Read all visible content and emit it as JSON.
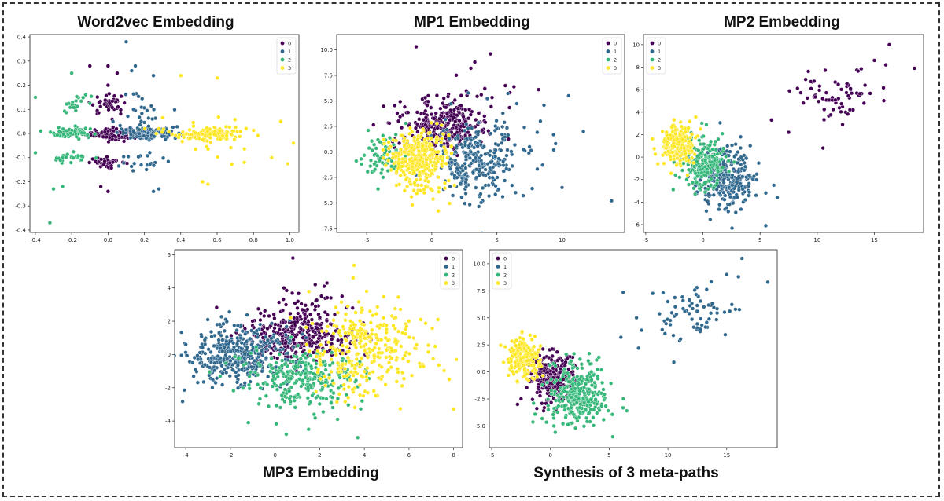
{
  "cluster_colors": [
    "#440154",
    "#31688e",
    "#35b779",
    "#fde725"
  ],
  "chart_data": [
    {
      "type": "scatter",
      "title": "Word2vec Embedding",
      "xlim": [
        -0.43,
        1.05
      ],
      "ylim": [
        -0.41,
        0.41
      ],
      "xticks": [
        -0.4,
        -0.2,
        0.0,
        0.2,
        0.4,
        0.6,
        0.8,
        1.0
      ],
      "xtick_labels": [
        "-0.4",
        "-0.2",
        "0.0",
        "0.2",
        "0.4",
        "0.6",
        "0.8",
        "1.0"
      ],
      "yticks": [
        -0.4,
        -0.3,
        -0.2,
        -0.1,
        0.0,
        0.1,
        0.2,
        0.3,
        0.4
      ],
      "ytick_labels": [
        "-0.4",
        "-0.3",
        "-0.2",
        "-0.1",
        "0.0",
        "0.1",
        "0.2",
        "0.3",
        "0.4"
      ],
      "legend": {
        "position": "top-right",
        "entries": [
          "0",
          "1",
          "2",
          "3"
        ]
      },
      "clusters": [
        {
          "label": "0",
          "blobs": [
            [
              0.0,
              0.0,
              0.06,
              0.012,
              120
            ],
            [
              0.0,
              0.12,
              0.05,
              0.02,
              40
            ],
            [
              0.0,
              -0.12,
              0.05,
              0.01,
              40
            ]
          ],
          "points": [
            [
              -0.1,
              0.28
            ],
            [
              0.0,
              0.28
            ],
            [
              0.05,
              0.25
            ],
            [
              -0.04,
              -0.22
            ],
            [
              0.0,
              -0.24
            ],
            [
              0.0,
              0.2
            ]
          ]
        },
        {
          "label": "1",
          "blobs": [
            [
              0.22,
              0.0,
              0.08,
              0.012,
              120
            ],
            [
              0.2,
              0.1,
              0.06,
              0.04,
              25
            ],
            [
              0.2,
              -0.12,
              0.07,
              0.02,
              20
            ]
          ],
          "points": [
            [
              0.1,
              0.38
            ],
            [
              0.15,
              0.28
            ],
            [
              0.25,
              -0.24
            ],
            [
              0.28,
              -0.23
            ],
            [
              0.13,
              0.26
            ],
            [
              0.25,
              0.24
            ]
          ]
        },
        {
          "label": "2",
          "blobs": [
            [
              -0.2,
              0.0,
              0.06,
              0.012,
              60
            ],
            [
              -0.2,
              -0.1,
              0.05,
              0.01,
              25
            ],
            [
              -0.2,
              0.12,
              0.04,
              0.03,
              20
            ]
          ],
          "points": [
            [
              -0.4,
              0.15
            ],
            [
              -0.32,
              -0.37
            ],
            [
              -0.37,
              0.01
            ],
            [
              -0.4,
              -0.08
            ],
            [
              -0.25,
              -0.22
            ],
            [
              -0.2,
              0.25
            ],
            [
              -0.3,
              -0.23
            ]
          ]
        },
        {
          "label": "3",
          "blobs": [
            [
              0.55,
              0.0,
              0.12,
              0.015,
              90
            ],
            [
              0.55,
              0.0,
              0.15,
              0.06,
              25
            ]
          ],
          "points": [
            [
              0.4,
              0.24
            ],
            [
              0.52,
              -0.2
            ],
            [
              0.55,
              -0.21
            ],
            [
              0.6,
              0.23
            ],
            [
              0.75,
              -0.12
            ],
            [
              0.95,
              0.05
            ],
            [
              1.02,
              -0.04
            ],
            [
              0.9,
              -0.1
            ]
          ]
        }
      ]
    },
    {
      "type": "scatter",
      "title": "MP1 Embedding",
      "xlim": [
        -7.3,
        14.8
      ],
      "ylim": [
        -7.9,
        11.5
      ],
      "xticks": [
        -5,
        0,
        5,
        10
      ],
      "xtick_labels": [
        "-5",
        "0",
        "5",
        "10"
      ],
      "yticks": [
        -7.5,
        -5.0,
        -2.5,
        0.0,
        2.5,
        5.0,
        7.5,
        10.0
      ],
      "ytick_labels": [
        "-7.5",
        "-5.0",
        "-2.5",
        "0.0",
        "2.5",
        "5.0",
        "7.5",
        "10.0"
      ],
      "legend": {
        "position": "top-right",
        "entries": [
          "0",
          "1",
          "2",
          "3"
        ]
      },
      "clusters": [
        {
          "label": "0",
          "blobs": [
            [
              0.8,
              2.5,
              1.7,
              1.1,
              260
            ],
            [
              1.5,
              4.2,
              2.2,
              1.4,
              50
            ]
          ],
          "points": [
            [
              -1.2,
              10.3
            ],
            [
              3.0,
              8.2
            ],
            [
              3.3,
              8.8
            ],
            [
              4.5,
              9.6
            ],
            [
              6.0,
              5.8
            ],
            [
              8.2,
              6.1
            ]
          ]
        },
        {
          "label": "1",
          "blobs": [
            [
              3.3,
              -1.0,
              1.6,
              1.9,
              250
            ],
            [
              5.0,
              0.0,
              2.5,
              2.5,
              40
            ]
          ],
          "points": [
            [
              10.5,
              5.5
            ],
            [
              13.8,
              -4.8
            ],
            [
              8.5,
              -1.3
            ],
            [
              10.0,
              -3.5
            ],
            [
              7.5,
              0.5
            ],
            [
              9.5,
              0.8
            ]
          ]
        },
        {
          "label": "2",
          "blobs": [
            [
              -3.7,
              -0.4,
              0.8,
              1.0,
              70
            ]
          ],
          "points": [
            [
              -5.8,
              -0.9
            ],
            [
              -2.0,
              2.8
            ]
          ]
        },
        {
          "label": "3",
          "blobs": [
            [
              -1.0,
              -0.4,
              1.1,
              1.2,
              320
            ],
            [
              -0.5,
              -3.5,
              0.9,
              0.9,
              30
            ]
          ],
          "points": [
            [
              -1.5,
              -5.2
            ],
            [
              0.5,
              -5.8
            ]
          ]
        }
      ]
    },
    {
      "type": "scatter",
      "title": "MP2 Embedding",
      "xlim": [
        -5.2,
        19.3
      ],
      "ylim": [
        -6.7,
        10.9
      ],
      "xticks": [
        -5,
        0,
        5,
        10,
        15
      ],
      "xtick_labels": [
        "-5",
        "0",
        "5",
        "10",
        "15"
      ],
      "yticks": [
        -6,
        -4,
        -2,
        0,
        2,
        4,
        6,
        8,
        10
      ],
      "ytick_labels": [
        "-6",
        "-4",
        "-2",
        "0",
        "2",
        "4",
        "6",
        "8",
        "10"
      ],
      "legend": {
        "position": "top-left",
        "entries": [
          "0",
          "1",
          "2",
          "3"
        ]
      },
      "clusters": [
        {
          "label": "0",
          "blobs": [
            [
              11.8,
              5.6,
              1.8,
              1.1,
              70
            ]
          ],
          "points": [
            [
              16.3,
              10.0
            ],
            [
              18.5,
              7.9
            ],
            [
              7.5,
              2.2
            ],
            [
              6.0,
              3.3
            ],
            [
              10.5,
              0.8
            ],
            [
              15.0,
              8.6
            ],
            [
              16.0,
              8.2
            ]
          ]
        },
        {
          "label": "1",
          "blobs": [
            [
              2.2,
              -1.8,
              1.3,
              1.4,
              280
            ]
          ],
          "points": [
            [
              6.2,
              -2.5
            ],
            [
              5.5,
              -6.1
            ],
            [
              3.3,
              1.8
            ],
            [
              6.5,
              -3.6
            ],
            [
              0.3,
              -4.8
            ]
          ]
        },
        {
          "label": "2",
          "blobs": [
            [
              0.1,
              -0.6,
              0.9,
              1.1,
              200
            ]
          ],
          "points": [
            [
              -2.4,
              -1.6
            ],
            [
              -2.6,
              -2.9
            ]
          ]
        },
        {
          "label": "3",
          "blobs": [
            [
              -2.3,
              1.1,
              0.75,
              0.9,
              200
            ]
          ],
          "points": [
            [
              -3.3,
              0.4
            ],
            [
              -2.0,
              -0.3
            ]
          ]
        }
      ]
    },
    {
      "type": "scatter",
      "title": "MP3 Embedding",
      "xlim": [
        -4.5,
        8.4
      ],
      "ylim": [
        -5.6,
        6.3
      ],
      "xticks": [
        -4,
        -2,
        0,
        2,
        4,
        6,
        8
      ],
      "xtick_labels": [
        "-4",
        "-2",
        "0",
        "2",
        "4",
        "6",
        "8"
      ],
      "yticks": [
        -4,
        -2,
        0,
        2,
        4,
        6
      ],
      "ytick_labels": [
        "-4",
        "-2",
        "0",
        "2",
        "4",
        "6"
      ],
      "legend": {
        "position": "top-right",
        "entries": [
          "0",
          "1",
          "2",
          "3"
        ]
      },
      "clusters": [
        {
          "label": "0",
          "blobs": [
            [
              1.1,
              1.1,
              1.3,
              0.8,
              300
            ],
            [
              1.2,
              2.8,
              1.0,
              0.8,
              40
            ]
          ],
          "points": [
            [
              0.8,
              5.8
            ],
            [
              0.4,
              4.0
            ],
            [
              1.8,
              4.2
            ],
            [
              2.2,
              4.1
            ],
            [
              2.5,
              3.4
            ],
            [
              3.0,
              3.5
            ]
          ]
        },
        {
          "label": "1",
          "blobs": [
            [
              -1.8,
              0.0,
              1.2,
              0.9,
              380
            ]
          ],
          "points": [
            [
              -4.0,
              0.6
            ],
            [
              -3.7,
              -0.5
            ],
            [
              -2.6,
              1.8
            ],
            [
              -2.8,
              -1.5
            ]
          ]
        },
        {
          "label": "2",
          "blobs": [
            [
              1.2,
              -1.4,
              1.3,
              0.9,
              280
            ]
          ],
          "points": [
            [
              1.5,
              -4.5
            ],
            [
              3.7,
              -5.0
            ],
            [
              -1.2,
              -4.1
            ],
            [
              3.9,
              -2.8
            ],
            [
              2.8,
              -3.9
            ],
            [
              0.5,
              -4.8
            ]
          ]
        },
        {
          "label": "3",
          "blobs": [
            [
              3.8,
              0.2,
              1.1,
              1.4,
              280
            ],
            [
              5.5,
              0.5,
              1.2,
              1.2,
              40
            ]
          ],
          "points": [
            [
              3.5,
              4.6
            ],
            [
              4.1,
              3.8
            ],
            [
              7.3,
              2.1
            ],
            [
              8.0,
              -3.3
            ],
            [
              7.8,
              -1.5
            ],
            [
              6.0,
              2.0
            ]
          ]
        }
      ]
    },
    {
      "type": "scatter",
      "title": "Synthesis of 3 meta-paths",
      "xlim": [
        -5.2,
        19.3
      ],
      "ylim": [
        -7.0,
        11.3
      ],
      "xticks": [
        -5,
        0,
        5,
        10,
        15
      ],
      "xtick_labels": [
        "-5",
        "0",
        "5",
        "10",
        "15"
      ],
      "yticks": [
        -5.0,
        -2.5,
        0.0,
        2.5,
        5.0,
        7.5,
        10.0
      ],
      "ytick_labels": [
        "-5.0",
        "-2.5",
        "0.0",
        "2.5",
        "5.0",
        "7.5",
        "10.0"
      ],
      "legend": {
        "position": "top-left",
        "entries": [
          "0",
          "1",
          "2",
          "3"
        ]
      },
      "clusters": [
        {
          "label": "0",
          "blobs": [
            [
              0.1,
              -0.4,
              0.95,
              1.2,
              260
            ]
          ],
          "points": [
            [
              -2.5,
              -2.5
            ],
            [
              -2.8,
              -3.0
            ]
          ]
        },
        {
          "label": "1",
          "blobs": [
            [
              11.8,
              5.6,
              1.8,
              1.2,
              70
            ]
          ],
          "points": [
            [
              16.3,
              10.5
            ],
            [
              18.5,
              8.3
            ],
            [
              7.5,
              2.2
            ],
            [
              6.0,
              3.2
            ],
            [
              10.5,
              0.9
            ],
            [
              15.0,
              9.0
            ],
            [
              16.0,
              8.8
            ]
          ]
        },
        {
          "label": "2",
          "blobs": [
            [
              2.2,
              -2.0,
              1.3,
              1.5,
              300
            ]
          ],
          "points": [
            [
              6.2,
              -2.5
            ],
            [
              5.3,
              -6.0
            ],
            [
              3.3,
              1.7
            ],
            [
              6.5,
              -3.6
            ],
            [
              0.3,
              -5.0
            ]
          ]
        },
        {
          "label": "3",
          "blobs": [
            [
              -2.3,
              1.3,
              0.75,
              0.9,
              210
            ]
          ],
          "points": [
            [
              -3.3,
              0.4
            ],
            [
              -2.0,
              -0.2
            ]
          ]
        }
      ]
    }
  ]
}
